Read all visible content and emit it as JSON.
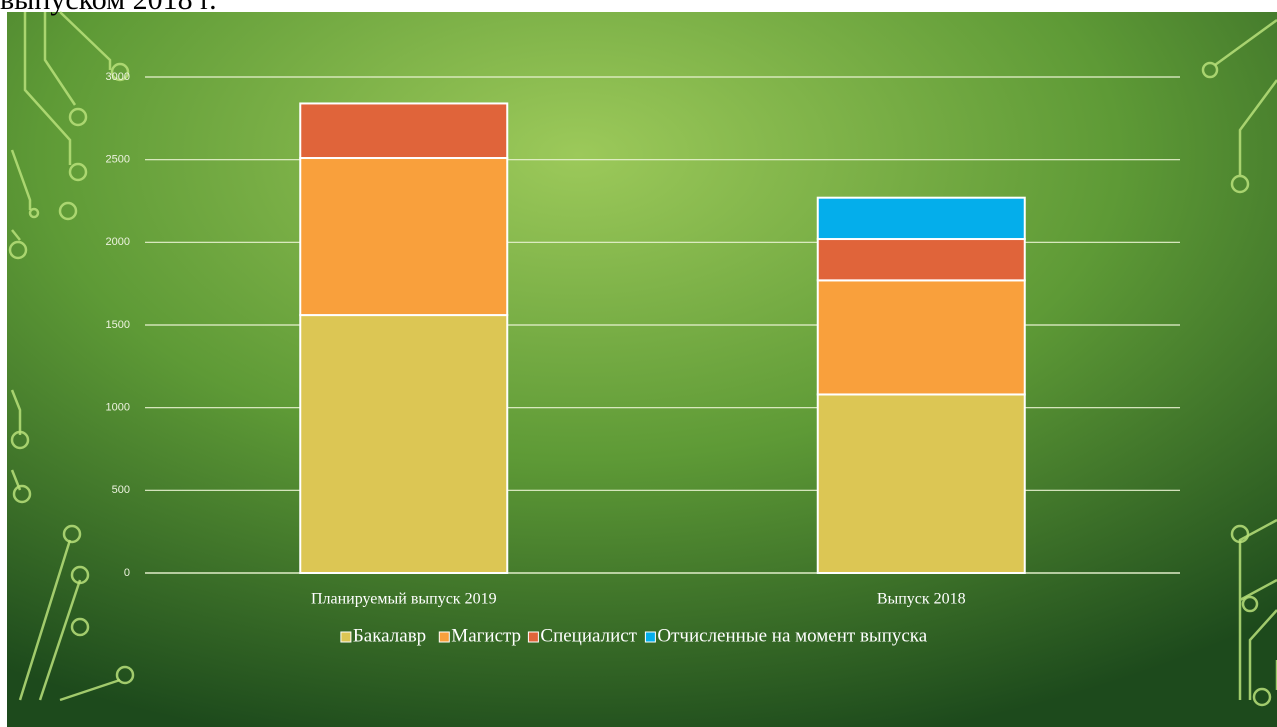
{
  "caption": "выпуском 2018 г.",
  "chart_data": {
    "type": "stacked-bar",
    "categories": [
      "Планируемый  выпуск  2019",
      "Выпуск  2018"
    ],
    "series": [
      {
        "name": "Бакалавр",
        "color": "#dcc654",
        "values": [
          1560,
          1080
        ]
      },
      {
        "name": "Магистр",
        "color": "#f9a03c",
        "values": [
          950,
          690
        ]
      },
      {
        "name": "Специалист",
        "color": "#e0643a",
        "values": [
          330,
          250
        ]
      },
      {
        "name": "Отчисленные на момент выпуска",
        "color": "#04aeeb",
        "values": [
          null,
          250
        ]
      }
    ],
    "ylim": [
      0,
      3000
    ],
    "yticks": [
      0,
      500,
      1000,
      1500,
      2000,
      2500,
      3000
    ],
    "grid": true,
    "legend": "bottom"
  }
}
